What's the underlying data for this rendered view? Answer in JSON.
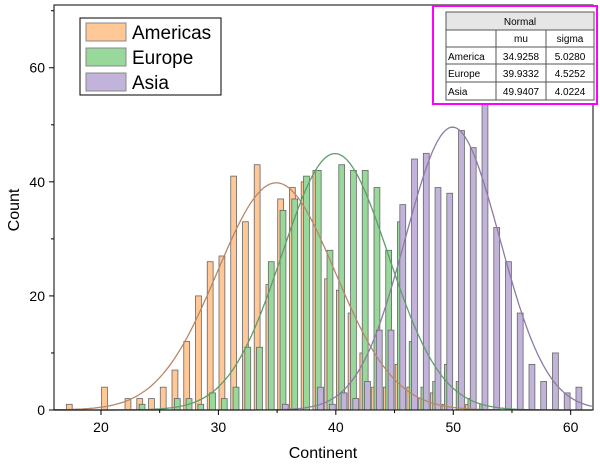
{
  "chart_data": {
    "type": "bar",
    "title": "",
    "xlabel": "Continent",
    "ylabel": "Count",
    "xlim": [
      16,
      61.9
    ],
    "ylim": [
      0,
      71
    ],
    "xticks": [
      20,
      30,
      40,
      50,
      60
    ],
    "yticks": [
      0,
      20,
      40,
      60
    ],
    "grid": false,
    "legend_placement": "top-left",
    "bin_width": 1,
    "bins": [
      17,
      18,
      19,
      20,
      21,
      22,
      23,
      24,
      25,
      26,
      27,
      28,
      29,
      30,
      31,
      32,
      33,
      34,
      35,
      36,
      37,
      38,
      39,
      40,
      41,
      42,
      43,
      44,
      45,
      46,
      47,
      48,
      49,
      50,
      51,
      52,
      53,
      54,
      55,
      56,
      57,
      58,
      59,
      60,
      61
    ],
    "series": [
      {
        "name": "Americas",
        "color": "#FFC896",
        "curve_color": "#B8876A",
        "values": [
          1,
          0,
          0,
          4,
          0,
          2,
          2,
          2,
          4,
          7,
          12,
          20,
          26,
          27,
          41,
          33,
          43,
          22,
          37,
          39,
          40,
          42,
          23,
          21,
          17,
          10,
          4,
          4,
          8,
          4,
          2,
          3,
          1,
          0,
          1,
          0,
          0,
          0,
          0,
          0,
          0,
          0,
          0,
          0,
          0
        ]
      },
      {
        "name": "Europe",
        "color": "#98D89A",
        "curve_color": "#5E9E6A",
        "values": [
          0,
          0,
          0,
          0,
          0,
          0,
          1,
          0,
          0,
          2,
          2,
          1,
          3,
          2,
          4,
          11,
          11,
          26,
          35,
          37,
          41,
          42,
          28,
          43,
          42,
          42,
          39,
          28,
          33,
          12,
          4,
          5,
          8,
          5,
          2,
          1,
          0,
          0,
          0,
          0,
          0,
          0,
          0,
          0,
          0
        ]
      },
      {
        "name": "Asia",
        "color": "#C2B3DB",
        "curve_color": "#8C7BA6",
        "values": [
          0,
          0,
          0,
          0,
          0,
          0,
          0,
          0,
          0,
          0,
          0,
          0,
          0,
          0,
          0,
          0,
          0,
          0,
          1,
          0,
          0,
          4,
          1,
          3,
          2,
          5,
          14,
          14,
          36,
          44,
          45,
          39,
          38,
          49,
          46,
          54,
          32,
          26,
          17,
          8,
          5,
          10,
          3,
          4,
          0
        ]
      }
    ],
    "fit_table": {
      "title": "Normal",
      "headers": [
        "",
        "mu",
        "sigma"
      ],
      "rows": [
        {
          "label": "America",
          "mu": "34.9258",
          "sigma": "5.0280"
        },
        {
          "label": "Europe",
          "mu": "39.9332",
          "sigma": "4.5252"
        },
        {
          "label": "Asia",
          "mu": "49.9407",
          "sigma": "4.0224"
        }
      ],
      "border_color": "#FF00FF"
    }
  }
}
